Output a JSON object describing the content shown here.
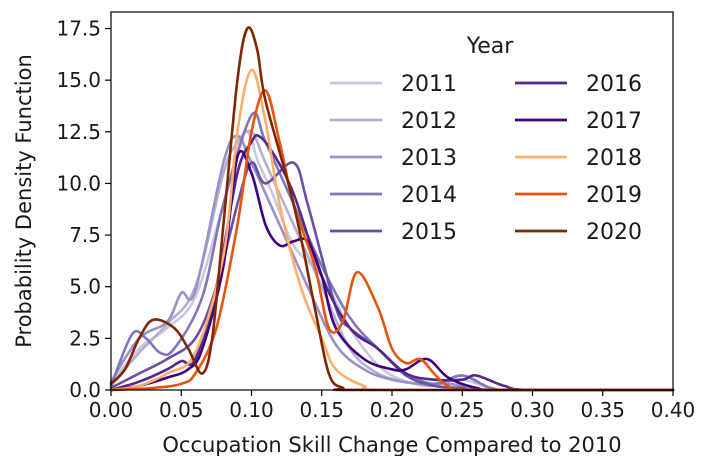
{
  "chart_data": {
    "type": "line",
    "xlabel": "Occupation Skill Change Compared to 2010",
    "ylabel": "Probability Density Function",
    "xlim": [
      0.0,
      0.4
    ],
    "ylim": [
      0.0,
      18.3
    ],
    "xticks": [
      "0.00",
      "0.05",
      "0.10",
      "0.15",
      "0.20",
      "0.25",
      "0.30",
      "0.35",
      "0.40"
    ],
    "yticks": [
      "0.0",
      "2.5",
      "5.0",
      "7.5",
      "10.0",
      "12.5",
      "15.0",
      "17.5"
    ],
    "grid": false,
    "legend": {
      "title": "Year",
      "placement": "top-right",
      "columns": 2
    },
    "series": [
      {
        "name": "2011",
        "color": "#c9c6e0",
        "points": [
          [
            0,
            0.3
          ],
          [
            0.02,
            2.0
          ],
          [
            0.04,
            3.0
          ],
          [
            0.06,
            4.5
          ],
          [
            0.08,
            9.0
          ],
          [
            0.095,
            12.5
          ],
          [
            0.105,
            11.0
          ],
          [
            0.115,
            9.5
          ],
          [
            0.13,
            7.0
          ],
          [
            0.15,
            5.5
          ],
          [
            0.17,
            3.0
          ],
          [
            0.19,
            1.2
          ],
          [
            0.21,
            0.4
          ],
          [
            0.23,
            0.3
          ],
          [
            0.25,
            0.5
          ],
          [
            0.27,
            0.1
          ],
          [
            0.29,
            0
          ],
          [
            0.4,
            0
          ]
        ]
      },
      {
        "name": "2012",
        "color": "#b2afd4",
        "points": [
          [
            0,
            0.2
          ],
          [
            0.02,
            1.8
          ],
          [
            0.04,
            3.2
          ],
          [
            0.06,
            5.0
          ],
          [
            0.08,
            10.5
          ],
          [
            0.09,
            12.0
          ],
          [
            0.1,
            12.5
          ],
          [
            0.11,
            11.0
          ],
          [
            0.13,
            8.0
          ],
          [
            0.15,
            5.0
          ],
          [
            0.17,
            2.0
          ],
          [
            0.19,
            0.8
          ],
          [
            0.21,
            0.4
          ],
          [
            0.23,
            0.2
          ],
          [
            0.25,
            0.7
          ],
          [
            0.27,
            0.1
          ],
          [
            0.29,
            0
          ],
          [
            0.4,
            0
          ]
        ]
      },
      {
        "name": "2013",
        "color": "#9893c6",
        "points": [
          [
            0,
            0.4
          ],
          [
            0.02,
            2.5
          ],
          [
            0.04,
            3.3
          ],
          [
            0.05,
            4.7
          ],
          [
            0.06,
            4.8
          ],
          [
            0.08,
            11.0
          ],
          [
            0.09,
            12.3
          ],
          [
            0.1,
            11.0
          ],
          [
            0.12,
            8.0
          ],
          [
            0.14,
            5.0
          ],
          [
            0.16,
            2.2
          ],
          [
            0.18,
            1.0
          ],
          [
            0.2,
            0.5
          ],
          [
            0.22,
            0.3
          ],
          [
            0.24,
            0.3
          ],
          [
            0.26,
            0.1
          ],
          [
            0.28,
            0
          ],
          [
            0.4,
            0
          ]
        ]
      },
      {
        "name": "2014",
        "color": "#7f78b8",
        "points": [
          [
            0,
            0.2
          ],
          [
            0.015,
            2.7
          ],
          [
            0.025,
            2.5
          ],
          [
            0.035,
            1.8
          ],
          [
            0.045,
            2.0
          ],
          [
            0.065,
            4.5
          ],
          [
            0.08,
            9.0
          ],
          [
            0.1,
            13.3
          ],
          [
            0.11,
            12.0
          ],
          [
            0.13,
            9.0
          ],
          [
            0.15,
            6.0
          ],
          [
            0.17,
            3.5
          ],
          [
            0.19,
            2.0
          ],
          [
            0.21,
            0.8
          ],
          [
            0.23,
            0.3
          ],
          [
            0.25,
            0.7
          ],
          [
            0.27,
            0.1
          ],
          [
            0.29,
            0
          ],
          [
            0.4,
            0
          ]
        ]
      },
      {
        "name": "2015",
        "color": "#6a51a3",
        "points": [
          [
            0,
            0.1
          ],
          [
            0.02,
            0.8
          ],
          [
            0.04,
            1.5
          ],
          [
            0.06,
            2.5
          ],
          [
            0.075,
            5.0
          ],
          [
            0.09,
            9.0
          ],
          [
            0.1,
            11.0
          ],
          [
            0.11,
            10.0
          ],
          [
            0.13,
            11.0
          ],
          [
            0.14,
            9.0
          ],
          [
            0.16,
            4.0
          ],
          [
            0.17,
            3.0
          ],
          [
            0.19,
            2.0
          ],
          [
            0.21,
            0.7
          ],
          [
            0.23,
            0.2
          ],
          [
            0.25,
            0.1
          ],
          [
            0.27,
            0
          ],
          [
            0.4,
            0
          ]
        ]
      },
      {
        "name": "2016",
        "color": "#54278f",
        "points": [
          [
            0,
            0
          ],
          [
            0.02,
            0.4
          ],
          [
            0.04,
            1.0
          ],
          [
            0.05,
            1.4
          ],
          [
            0.06,
            1.5
          ],
          [
            0.075,
            5.0
          ],
          [
            0.09,
            10.5
          ],
          [
            0.1,
            12.0
          ],
          [
            0.105,
            12.3
          ],
          [
            0.115,
            11.5
          ],
          [
            0.13,
            9.5
          ],
          [
            0.15,
            5.5
          ],
          [
            0.17,
            3.0
          ],
          [
            0.19,
            2.0
          ],
          [
            0.21,
            0.8
          ],
          [
            0.23,
            0.5
          ],
          [
            0.25,
            0.5
          ],
          [
            0.26,
            0.7
          ],
          [
            0.28,
            0.2
          ],
          [
            0.3,
            0
          ],
          [
            0.4,
            0
          ]
        ]
      },
      {
        "name": "2017",
        "color": "#3f007d",
        "points": [
          [
            0,
            0
          ],
          [
            0.02,
            0.2
          ],
          [
            0.04,
            0.6
          ],
          [
            0.055,
            1.0
          ],
          [
            0.065,
            2.0
          ],
          [
            0.08,
            6.0
          ],
          [
            0.09,
            11.3
          ],
          [
            0.1,
            10.5
          ],
          [
            0.11,
            8.0
          ],
          [
            0.12,
            7.0
          ],
          [
            0.13,
            7.2
          ],
          [
            0.14,
            7.2
          ],
          [
            0.15,
            5.5
          ],
          [
            0.16,
            3.0
          ],
          [
            0.18,
            1.5
          ],
          [
            0.2,
            1.0
          ],
          [
            0.21,
            1.0
          ],
          [
            0.225,
            1.5
          ],
          [
            0.24,
            0.6
          ],
          [
            0.26,
            0.1
          ],
          [
            0.28,
            0
          ],
          [
            0.4,
            0
          ]
        ]
      },
      {
        "name": "2018",
        "color": "#fdae6b",
        "points": [
          [
            0,
            0
          ],
          [
            0.02,
            0.2
          ],
          [
            0.04,
            0.8
          ],
          [
            0.06,
            1.8
          ],
          [
            0.08,
            6.5
          ],
          [
            0.09,
            12.5
          ],
          [
            0.1,
            15.5
          ],
          [
            0.11,
            13.0
          ],
          [
            0.12,
            9.0
          ],
          [
            0.135,
            5.0
          ],
          [
            0.15,
            2.5
          ],
          [
            0.16,
            1.0
          ],
          [
            0.18,
            0.2
          ],
          [
            0.2,
            0
          ],
          [
            0.4,
            0
          ]
        ]
      },
      {
        "name": "2019",
        "color": "#e6550d",
        "points": [
          [
            0,
            0
          ],
          [
            0.03,
            0.1
          ],
          [
            0.05,
            0.3
          ],
          [
            0.06,
            0.8
          ],
          [
            0.075,
            3.0
          ],
          [
            0.09,
            8.0
          ],
          [
            0.1,
            12.5
          ],
          [
            0.11,
            14.5
          ],
          [
            0.12,
            12.0
          ],
          [
            0.13,
            9.0
          ],
          [
            0.145,
            6.0
          ],
          [
            0.155,
            3.0
          ],
          [
            0.165,
            3.3
          ],
          [
            0.175,
            5.7
          ],
          [
            0.19,
            4.0
          ],
          [
            0.2,
            2.0
          ],
          [
            0.21,
            1.3
          ],
          [
            0.22,
            1.5
          ],
          [
            0.23,
            0.8
          ],
          [
            0.24,
            0.2
          ],
          [
            0.26,
            0
          ],
          [
            0.4,
            0
          ]
        ]
      },
      {
        "name": "2020",
        "color": "#7f2704",
        "points": [
          [
            0,
            0.3
          ],
          [
            0.01,
            1.0
          ],
          [
            0.02,
            2.5
          ],
          [
            0.03,
            3.4
          ],
          [
            0.045,
            3.0
          ],
          [
            0.055,
            2.0
          ],
          [
            0.065,
            0.8
          ],
          [
            0.072,
            2.5
          ],
          [
            0.08,
            8.0
          ],
          [
            0.09,
            15.0
          ],
          [
            0.097,
            17.5
          ],
          [
            0.104,
            16.5
          ],
          [
            0.11,
            14.0
          ],
          [
            0.13,
            9.0
          ],
          [
            0.145,
            4.0
          ],
          [
            0.155,
            0.8
          ],
          [
            0.165,
            0.1
          ],
          [
            0.18,
            0
          ],
          [
            0.4,
            0
          ]
        ]
      }
    ]
  }
}
